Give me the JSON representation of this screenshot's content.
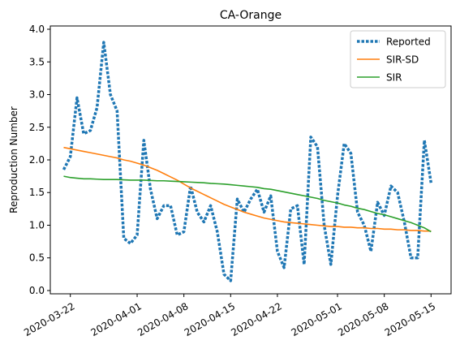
{
  "chart_data": {
    "type": "line",
    "title": "CA-Orange",
    "xlabel": "",
    "ylabel": "Reproduction Number",
    "x_start": "2020-03-21",
    "x_end": "2020-05-15",
    "xlim": [
      "2020-03-19",
      "2020-05-18"
    ],
    "ylim": [
      -0.05,
      4.05
    ],
    "x_ticks": [
      "2020-03-22",
      "2020-04-01",
      "2020-04-08",
      "2020-04-15",
      "2020-04-22",
      "2020-05-01",
      "2020-05-08",
      "2020-05-15"
    ],
    "y_ticks": [
      "0.0",
      "0.5",
      "1.0",
      "1.5",
      "2.0",
      "2.5",
      "3.0",
      "3.5",
      "4.0"
    ],
    "grid": false,
    "legend_position": "top-right",
    "series": [
      {
        "name": "Reported",
        "color": "#1f77b4",
        "style": "dotted",
        "values": [
          1.85,
          2.05,
          2.95,
          2.4,
          2.45,
          2.8,
          3.8,
          3.0,
          2.75,
          0.8,
          0.72,
          0.85,
          2.3,
          1.55,
          1.1,
          1.3,
          1.3,
          0.85,
          0.9,
          1.6,
          1.2,
          1.05,
          1.3,
          0.9,
          0.25,
          0.15,
          1.4,
          1.2,
          1.4,
          1.55,
          1.2,
          1.45,
          0.6,
          0.35,
          1.25,
          1.3,
          0.4,
          2.35,
          2.2,
          1.0,
          0.4,
          1.45,
          2.25,
          2.1,
          1.2,
          1.0,
          0.6,
          1.35,
          1.15,
          1.6,
          1.5,
          1.05,
          0.5,
          0.5,
          2.3,
          1.65
        ]
      },
      {
        "name": "SIR-SD",
        "color": "#ff7f0e",
        "style": "solid",
        "values": [
          2.19,
          2.17,
          2.15,
          2.13,
          2.11,
          2.09,
          2.07,
          2.05,
          2.03,
          2.0,
          1.98,
          1.95,
          1.92,
          1.88,
          1.84,
          1.79,
          1.74,
          1.69,
          1.63,
          1.57,
          1.52,
          1.47,
          1.42,
          1.37,
          1.32,
          1.28,
          1.24,
          1.2,
          1.17,
          1.14,
          1.11,
          1.09,
          1.07,
          1.05,
          1.04,
          1.03,
          1.02,
          1.01,
          1.0,
          0.99,
          0.98,
          0.98,
          0.97,
          0.97,
          0.96,
          0.96,
          0.95,
          0.95,
          0.94,
          0.94,
          0.93,
          0.93,
          0.92,
          0.92,
          0.91,
          0.91
        ]
      },
      {
        "name": "SIR",
        "color": "#2ca02c",
        "style": "solid",
        "values": [
          1.75,
          1.73,
          1.72,
          1.71,
          1.71,
          1.705,
          1.7,
          1.7,
          1.7,
          1.695,
          1.69,
          1.69,
          1.69,
          1.685,
          1.68,
          1.68,
          1.675,
          1.67,
          1.665,
          1.66,
          1.655,
          1.65,
          1.64,
          1.635,
          1.63,
          1.62,
          1.61,
          1.6,
          1.59,
          1.58,
          1.56,
          1.55,
          1.53,
          1.51,
          1.49,
          1.47,
          1.45,
          1.43,
          1.41,
          1.38,
          1.36,
          1.34,
          1.31,
          1.29,
          1.26,
          1.24,
          1.21,
          1.18,
          1.16,
          1.13,
          1.1,
          1.07,
          1.04,
          1.0,
          0.96,
          0.9
        ]
      }
    ]
  }
}
